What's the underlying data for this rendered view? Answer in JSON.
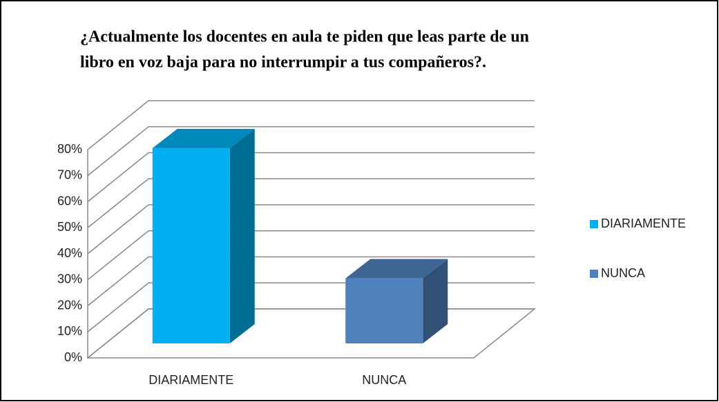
{
  "chart_data": {
    "type": "bar3d",
    "title": [
      "¿Actualmente los  docentes en  aula te piden que leas parte de un",
      "libro en  voz baja para no interrumpir a tus compañeros?."
    ],
    "categories": [
      "DIARIAMENTE",
      "NUNCA"
    ],
    "series": [
      {
        "name": "DIARIAMENTE",
        "color": "#00b0f0",
        "values": [
          75,
          null
        ]
      },
      {
        "name": "NUNCA",
        "color": "#4f81bd",
        "values": [
          null,
          25
        ]
      }
    ],
    "ylim": [
      0,
      80
    ],
    "yticks": [
      {
        "value": 0,
        "label": "0%"
      },
      {
        "value": 10,
        "label": "10%"
      },
      {
        "value": 20,
        "label": "20%"
      },
      {
        "value": 30,
        "label": "30%"
      },
      {
        "value": 40,
        "label": "40%"
      },
      {
        "value": 50,
        "label": "50%"
      },
      {
        "value": 60,
        "label": "60%"
      },
      {
        "value": 70,
        "label": "70%"
      },
      {
        "value": 80,
        "label": "80%"
      }
    ],
    "grid": true,
    "legend": "right"
  }
}
